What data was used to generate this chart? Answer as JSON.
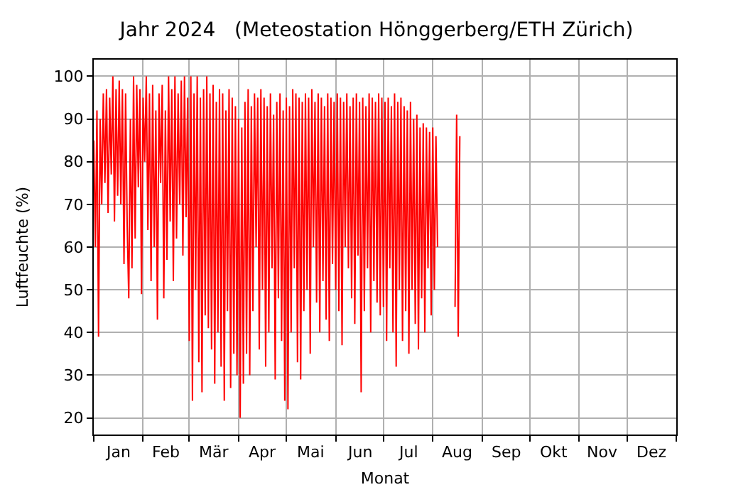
{
  "chart_data": {
    "type": "line",
    "title": "Jahr 2024   (Meteostation Hönggerberg/ETH Zürich)",
    "xlabel": "Monat",
    "ylabel": "Luftfeuchte (%)",
    "series": [
      {
        "color": "#ff0000",
        "x": [
          "2024-01-01",
          "2024-01-02",
          "2024-01-03",
          "2024-01-04",
          "2024-01-05",
          "2024-01-06",
          "2024-01-07",
          "2024-01-08",
          "2024-01-09",
          "2024-01-10",
          "2024-01-11",
          "2024-01-12",
          "2024-01-13",
          "2024-01-14",
          "2024-01-15",
          "2024-01-16",
          "2024-01-17",
          "2024-01-18",
          "2024-01-19",
          "2024-01-20",
          "2024-01-21",
          "2024-01-22",
          "2024-01-23",
          "2024-01-24",
          "2024-01-25",
          "2024-01-26",
          "2024-01-27",
          "2024-01-28",
          "2024-01-29",
          "2024-01-30",
          "2024-01-31",
          "2024-02-01",
          "2024-02-02",
          "2024-02-03",
          "2024-02-04",
          "2024-02-05",
          "2024-02-06",
          "2024-02-07",
          "2024-02-08",
          "2024-02-09",
          "2024-02-10",
          "2024-02-11",
          "2024-02-12",
          "2024-02-13",
          "2024-02-14",
          "2024-02-15",
          "2024-02-16",
          "2024-02-17",
          "2024-02-18",
          "2024-02-19",
          "2024-02-20",
          "2024-02-21",
          "2024-02-22",
          "2024-02-23",
          "2024-02-24",
          "2024-02-25",
          "2024-02-26",
          "2024-02-27",
          "2024-02-28",
          "2024-02-29",
          "2024-03-01",
          "2024-03-02",
          "2024-03-03",
          "2024-03-04",
          "2024-03-05",
          "2024-03-06",
          "2024-03-07",
          "2024-03-08",
          "2024-03-09",
          "2024-03-10",
          "2024-03-11",
          "2024-03-12",
          "2024-03-13",
          "2024-03-14",
          "2024-03-15",
          "2024-03-16",
          "2024-03-17",
          "2024-03-18",
          "2024-03-19",
          "2024-03-20",
          "2024-03-21",
          "2024-03-22",
          "2024-03-23",
          "2024-03-24",
          "2024-03-25",
          "2024-03-26",
          "2024-03-27",
          "2024-03-28",
          "2024-03-29",
          "2024-03-30",
          "2024-03-31",
          "2024-04-01",
          "2024-04-02",
          "2024-04-03",
          "2024-04-04",
          "2024-04-05",
          "2024-04-06",
          "2024-04-07",
          "2024-04-08",
          "2024-04-09",
          "2024-04-10",
          "2024-04-11",
          "2024-04-12",
          "2024-04-13",
          "2024-04-14",
          "2024-04-15",
          "2024-04-16",
          "2024-04-17",
          "2024-04-18",
          "2024-04-19",
          "2024-04-20",
          "2024-04-21",
          "2024-04-22",
          "2024-04-23",
          "2024-04-24",
          "2024-04-25",
          "2024-04-26",
          "2024-04-27",
          "2024-04-28",
          "2024-04-29",
          "2024-04-30",
          "2024-05-01",
          "2024-05-02",
          "2024-05-03",
          "2024-05-04",
          "2024-05-05",
          "2024-05-06",
          "2024-05-07",
          "2024-05-08",
          "2024-05-09",
          "2024-05-10",
          "2024-05-11",
          "2024-05-12",
          "2024-05-13",
          "2024-05-14",
          "2024-05-15",
          "2024-05-16",
          "2024-05-17",
          "2024-05-18",
          "2024-05-19",
          "2024-05-20",
          "2024-05-21",
          "2024-05-22",
          "2024-05-23",
          "2024-05-24",
          "2024-05-25",
          "2024-05-26",
          "2024-05-27",
          "2024-05-28",
          "2024-05-29",
          "2024-05-30",
          "2024-05-31",
          "2024-06-01",
          "2024-06-02",
          "2024-06-03",
          "2024-06-04",
          "2024-06-05",
          "2024-06-06",
          "2024-06-07",
          "2024-06-08",
          "2024-06-09",
          "2024-06-10",
          "2024-06-11",
          "2024-06-12",
          "2024-06-13",
          "2024-06-14",
          "2024-06-15",
          "2024-06-16",
          "2024-06-17",
          "2024-06-18",
          "2024-06-19",
          "2024-06-20",
          "2024-06-21",
          "2024-06-22",
          "2024-06-23",
          "2024-06-24",
          "2024-06-25",
          "2024-06-26",
          "2024-06-27",
          "2024-06-28",
          "2024-06-29",
          "2024-06-30",
          "2024-07-01",
          "2024-07-02",
          "2024-07-03",
          "2024-07-04",
          "2024-07-05",
          "2024-07-06",
          "2024-07-07",
          "2024-07-08",
          "2024-07-09",
          "2024-07-10",
          "2024-07-11",
          "2024-07-12",
          "2024-07-13",
          "2024-07-14",
          "2024-07-15",
          "2024-07-16",
          "2024-07-17",
          "2024-07-18",
          "2024-07-19",
          "2024-07-20",
          "2024-07-21",
          "2024-07-22",
          "2024-07-23",
          "2024-07-24",
          "2024-07-25",
          "2024-07-26",
          "2024-07-27",
          "2024-07-28",
          "2024-07-29",
          "2024-07-30",
          "2024-07-31",
          "2024-08-01",
          "2024-08-02",
          "2024-08-03",
          "2024-08-04",
          "2024-08-05",
          "2024-08-15",
          "2024-08-16",
          "2024-08-17",
          "2024-08-18"
        ],
        "values": [
          85,
          60,
          92,
          39,
          90,
          70,
          96,
          75,
          97,
          68,
          95,
          77,
          100,
          66,
          97,
          72,
          99,
          70,
          97,
          56,
          96,
          65,
          48,
          90,
          55,
          100,
          62,
          98,
          74,
          97,
          49,
          95,
          80,
          100,
          64,
          96,
          52,
          98,
          60,
          92,
          43,
          96,
          75,
          98,
          48,
          92,
          57,
          100,
          66,
          97,
          52,
          100,
          62,
          96,
          70,
          99,
          58,
          100,
          67,
          95,
          38,
          100,
          24,
          96,
          50,
          100,
          33,
          95,
          26,
          97,
          44,
          100,
          41,
          96,
          36,
          98,
          28,
          94,
          40,
          97,
          32,
          96,
          24,
          92,
          45,
          97,
          27,
          95,
          35,
          93,
          30,
          90,
          20,
          88,
          28,
          94,
          35,
          97,
          30,
          93,
          45,
          96,
          60,
          95,
          36,
          97,
          50,
          95,
          32,
          93,
          40,
          96,
          55,
          91,
          29,
          94,
          48,
          96,
          38,
          92,
          24,
          95,
          22,
          93,
          40,
          97,
          55,
          96,
          33,
          95,
          29,
          94,
          45,
          96,
          50,
          95,
          35,
          97,
          60,
          94,
          47,
          96,
          40,
          95,
          52,
          93,
          43,
          96,
          38,
          95,
          56,
          94,
          50,
          96,
          45,
          95,
          37,
          94,
          60,
          96,
          55,
          93,
          48,
          95,
          42,
          96,
          58,
          94,
          26,
          95,
          45,
          93,
          55,
          96,
          40,
          95,
          52,
          94,
          47,
          96,
          44,
          95,
          46,
          94,
          38,
          95,
          55,
          93,
          40,
          96,
          32,
          94,
          50,
          95,
          38,
          93,
          45,
          92,
          35,
          94,
          50,
          90,
          42,
          91,
          36,
          88,
          48,
          89,
          40,
          88,
          55,
          87,
          44,
          88,
          50,
          86,
          60,
          null,
          46,
          91,
          39,
          86
        ]
      }
    ],
    "xlim": [
      "2024-01-01",
      "2025-01-01"
    ],
    "xticks": [
      {
        "value": "2024-01-01",
        "label": null
      },
      {
        "value": "2024-02-01",
        "label": null
      },
      {
        "value": "2024-03-01",
        "label": null
      },
      {
        "value": "2024-04-01",
        "label": null
      },
      {
        "value": "2024-05-01",
        "label": null
      },
      {
        "value": "2024-06-01",
        "label": null
      },
      {
        "value": "2024-07-01",
        "label": null
      },
      {
        "value": "2024-08-01",
        "label": null
      },
      {
        "value": "2024-09-01",
        "label": null
      },
      {
        "value": "2024-10-01",
        "label": null
      },
      {
        "value": "2024-11-01",
        "label": null
      },
      {
        "value": "2024-12-01",
        "label": null
      },
      {
        "value": "2025-01-01",
        "label": null
      },
      {
        "value": "2024-01-16",
        "label": "Jan"
      },
      {
        "value": "2024-02-15",
        "label": "Feb"
      },
      {
        "value": "2024-03-16",
        "label": "Mär"
      },
      {
        "value": "2024-04-16",
        "label": "Apr"
      },
      {
        "value": "2024-05-16",
        "label": "Mai"
      },
      {
        "value": "2024-06-16",
        "label": "Jun"
      },
      {
        "value": "2024-07-16",
        "label": "Jul"
      },
      {
        "value": "2024-08-16",
        "label": "Aug"
      },
      {
        "value": "2024-09-16",
        "label": "Sep"
      },
      {
        "value": "2024-10-16",
        "label": "Okt"
      },
      {
        "value": "2024-11-16",
        "label": "Nov"
      },
      {
        "value": "2024-12-16",
        "label": "Dez"
      }
    ],
    "ylim": [
      16.1,
      103.9
    ],
    "yticks": [
      20,
      30,
      40,
      50,
      60,
      70,
      80,
      90,
      100
    ],
    "grid": true,
    "marker": "none",
    "line_style": "solid"
  }
}
